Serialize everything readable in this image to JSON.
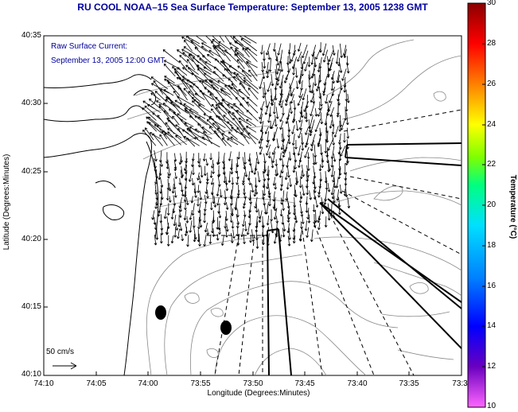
{
  "title": "RU COOL  NOAA–15  Sea Surface Temperature:  September 13, 2005 1238 GMT",
  "legend": {
    "line1": "Raw Surface Current:",
    "line2": "September 13, 2005 12:00 GMT"
  },
  "scale_label": "50 cm/s",
  "axes": {
    "xlabel": "Longitude (Degrees:Minutes)",
    "ylabel": "Latitude (Degrees:Minutes)",
    "x_ticks": [
      "74:10",
      "74:05",
      "74:00",
      "73:55",
      "73:50",
      "73:45",
      "73:40",
      "73:35",
      "73:3"
    ],
    "y_ticks": [
      "40:35",
      "40:30",
      "40:25",
      "40:20",
      "40:15",
      "40:10"
    ]
  },
  "colorbar": {
    "label": "Temperature (°C)",
    "ticks": [
      "30",
      "28",
      "26",
      "24",
      "22",
      "20",
      "18",
      "16",
      "14",
      "12",
      "10"
    ],
    "colors": [
      "#ff66ff",
      "#4b0082",
      "#0000ff",
      "#00c0ff",
      "#00ff80",
      "#80ff00",
      "#ffff00",
      "#ff8000",
      "#ff0000",
      "#8b0000"
    ]
  },
  "map": {
    "land_color": "#ffffff",
    "coast_color": "#000000",
    "contour_color": "#888888",
    "vector_color": "#000000"
  }
}
